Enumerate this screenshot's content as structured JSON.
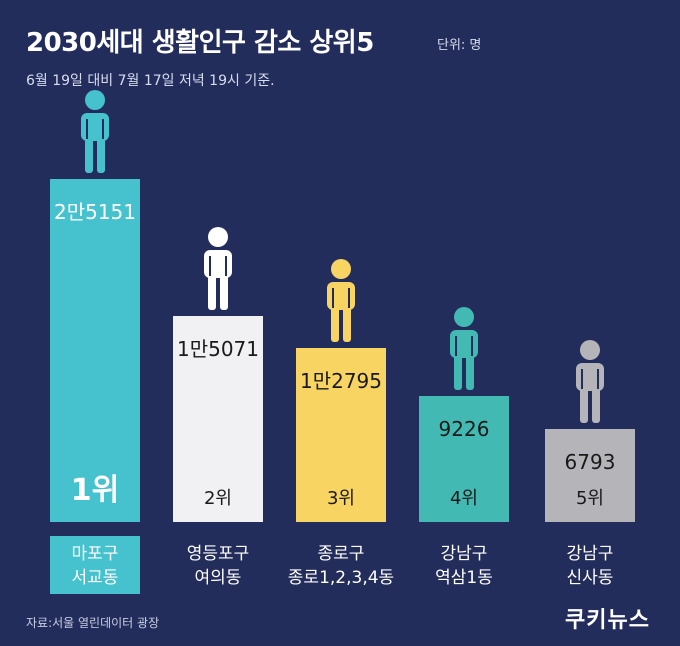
{
  "title": "2030세대 생활인구 감소 상위5",
  "unit_label": "단위: 명",
  "subtitle": "6월 19일 대비 7월 17일 저녁 19시 기준.",
  "source": "자료:서울 열린데이터 광장",
  "logo": "쿠키뉴스",
  "chart_data": {
    "type": "bar",
    "unit": "명",
    "categories": [
      "마포구 서교동",
      "영등포구 여의동",
      "종로구 종로1,2,3,4동",
      "강남구 역삼1동",
      "강남구 신사동"
    ],
    "category_lines": [
      [
        "마포구",
        "서교동"
      ],
      [
        "영등포구",
        "여의동"
      ],
      [
        "종로구",
        "종로1,2,3,4동"
      ],
      [
        "강남구",
        "역삼1동"
      ],
      [
        "강남구",
        "신사동"
      ]
    ],
    "values": [
      25151,
      15071,
      12795,
      9226,
      6793
    ],
    "value_labels": [
      "2만5151",
      "1만5071",
      "1만2795",
      "9226",
      "6793"
    ],
    "rank_labels": [
      "1위",
      "2위",
      "3위",
      "4위",
      "5위"
    ],
    "bar_colors": [
      "#45c2ce",
      "#f1f1f3",
      "#f8d463",
      "#42bab3",
      "#b5b5b9"
    ],
    "value_text_colors": [
      "#ffffff",
      "#1a1a1a",
      "#1a1a1a",
      "#1a1a1a",
      "#1a1a1a"
    ],
    "icon_colors": [
      "#45c2ce",
      "#ffffff",
      "#f8d463",
      "#42bab3",
      "#b5b5b9"
    ],
    "highlight_index": 0,
    "ylim": [
      0,
      25151
    ]
  }
}
